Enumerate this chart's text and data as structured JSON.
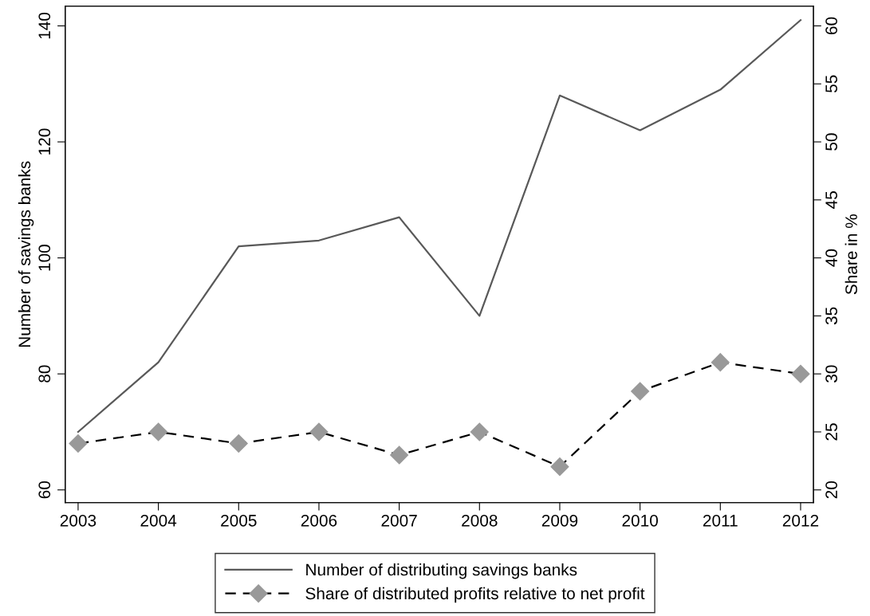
{
  "chart_data": {
    "type": "line",
    "ylabel": "Number of savings banks",
    "y2label": "Share in %",
    "x": [
      2003,
      2004,
      2005,
      2006,
      2007,
      2008,
      2009,
      2010,
      2011,
      2012
    ],
    "xlim": [
      2002.84,
      2012.16
    ],
    "xticks": [
      2003,
      2004,
      2005,
      2006,
      2007,
      2008,
      2009,
      2010,
      2011,
      2012
    ],
    "ylim": [
      57.8,
      143.4
    ],
    "yticks": [
      60,
      80,
      100,
      120,
      140
    ],
    "y2lim": [
      18.9,
      61.7
    ],
    "y2ticks": [
      20,
      25,
      30,
      35,
      40,
      45,
      50,
      55,
      60
    ],
    "grid": false,
    "legend": "bottom",
    "series": [
      {
        "name": "Number of distributing savings banks",
        "color": "#595959",
        "line_style": "solid",
        "marker": "none",
        "values": [
          70,
          82,
          102,
          103,
          107,
          90,
          128,
          122,
          129,
          141
        ]
      },
      {
        "name": "Share of distributed profits relative to net profit",
        "color": "#000000",
        "line_style": "dashed",
        "marker": "diamond",
        "axis": "y2",
        "values": [
          24,
          25,
          24,
          25,
          23,
          25,
          22,
          28.5,
          31,
          30
        ]
      }
    ]
  }
}
